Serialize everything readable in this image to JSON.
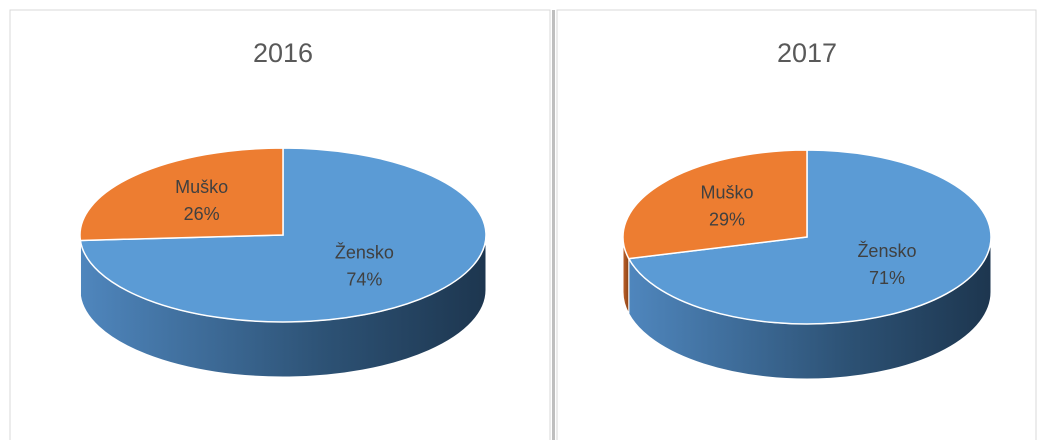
{
  "chart_data": [
    {
      "type": "pie",
      "title": "2016",
      "categories": [
        "Žensko",
        "Muško"
      ],
      "values": [
        74,
        26
      ],
      "value_labels": [
        "74%",
        "26%"
      ],
      "colors": [
        "#5b9bd5",
        "#ed7d31"
      ]
    },
    {
      "type": "pie",
      "title": "2017",
      "categories": [
        "Žensko",
        "Muško"
      ],
      "values": [
        71,
        29
      ],
      "value_labels": [
        "71%",
        "29%"
      ],
      "colors": [
        "#5b9bd5",
        "#ed7d31"
      ]
    }
  ]
}
